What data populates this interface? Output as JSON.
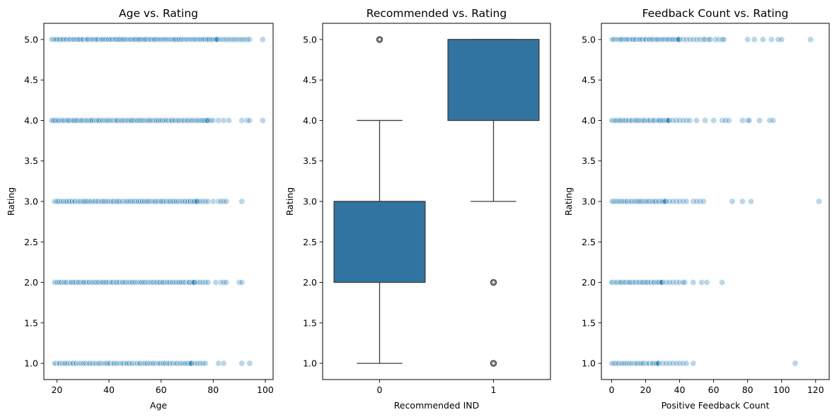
{
  "chart_data": [
    {
      "type": "scatter",
      "title": "Age vs. Rating",
      "xlabel": "Age",
      "ylabel": "Rating",
      "xlim": [
        15,
        103
      ],
      "ylim": [
        0.8,
        5.2
      ],
      "xticks": [
        20,
        40,
        60,
        80,
        100
      ],
      "yticks": [
        1.0,
        1.5,
        2.0,
        2.5,
        3.0,
        3.5,
        4.0,
        4.5,
        5.0
      ],
      "xtick_labels": [
        "20",
        "40",
        "60",
        "80",
        "100"
      ],
      "ytick_labels": [
        "1.0",
        "1.5",
        "2.0",
        "2.5",
        "3.0",
        "3.5",
        "4.0",
        "4.5",
        "5.0"
      ],
      "marker_color": "#1f77b4",
      "alpha": 0.3,
      "groups": [
        {
          "y": 5,
          "dense_range": [
            18,
            82
          ],
          "sparse_x": [
            83,
            84,
            85,
            86,
            87,
            88,
            89,
            90,
            91,
            92,
            93,
            94,
            99
          ]
        },
        {
          "y": 4,
          "dense_range": [
            18,
            78
          ],
          "sparse_x": [
            79,
            80,
            82,
            84,
            86,
            91,
            93,
            94,
            99
          ]
        },
        {
          "y": 3,
          "dense_range": [
            19,
            74
          ],
          "sparse_x": [
            75,
            76,
            77,
            78,
            80,
            82,
            83,
            84,
            85,
            91
          ]
        },
        {
          "y": 2,
          "dense_range": [
            19,
            73
          ],
          "sparse_x": [
            74,
            75,
            76,
            77,
            78,
            81,
            83,
            84,
            85,
            90,
            91
          ]
        },
        {
          "y": 1,
          "dense_range": [
            19,
            72
          ],
          "sparse_x": [
            73,
            74,
            75,
            76,
            77,
            82,
            84,
            91,
            94
          ]
        }
      ]
    },
    {
      "type": "box",
      "title": "Recommended vs. Rating",
      "xlabel": "Recommended IND",
      "ylabel": "Rating",
      "categories": [
        "0",
        "1"
      ],
      "ylim": [
        0.8,
        5.2
      ],
      "yticks": [
        1.0,
        1.5,
        2.0,
        2.5,
        3.0,
        3.5,
        4.0,
        4.5,
        5.0
      ],
      "ytick_labels": [
        "1.0",
        "1.5",
        "2.0",
        "2.5",
        "3.0",
        "3.5",
        "4.0",
        "4.5",
        "5.0"
      ],
      "box_color": "#3274a1",
      "boxes": [
        {
          "category": "0",
          "whisker_low": 1,
          "q1": 2,
          "median": 3,
          "q3": 3,
          "whisker_high": 4,
          "outliers": [
            5
          ]
        },
        {
          "category": "1",
          "whisker_low": 3,
          "q1": 4,
          "median": 5,
          "q3": 5,
          "whisker_high": 5,
          "outliers": [
            1,
            2
          ]
        }
      ]
    },
    {
      "type": "scatter",
      "title": "Feedback Count vs. Rating",
      "xlabel": "Positive Feedback Count",
      "ylabel": "Rating",
      "xlim": [
        -6,
        128
      ],
      "ylim": [
        0.8,
        5.2
      ],
      "xticks": [
        0,
        20,
        40,
        60,
        80,
        100,
        120
      ],
      "yticks": [
        1.0,
        1.5,
        2.0,
        2.5,
        3.0,
        3.5,
        4.0,
        4.5,
        5.0
      ],
      "xtick_labels": [
        "0",
        "20",
        "40",
        "60",
        "80",
        "100",
        "120"
      ],
      "ytick_labels": [
        "1.0",
        "1.5",
        "2.0",
        "2.5",
        "3.0",
        "3.5",
        "4.0",
        "4.5",
        "5.0"
      ],
      "marker_color": "#1f77b4",
      "alpha": 0.3,
      "groups": [
        {
          "y": 5,
          "dense_range": [
            0,
            40
          ],
          "sparse_x": [
            42,
            44,
            46,
            48,
            50,
            52,
            54,
            55,
            57,
            58,
            61,
            63,
            65,
            66,
            80,
            84,
            89,
            94,
            98,
            100,
            117
          ]
        },
        {
          "y": 4,
          "dense_range": [
            0,
            34
          ],
          "sparse_x": [
            36,
            38,
            40,
            42,
            44,
            46,
            50,
            55,
            60,
            65,
            67,
            69,
            77,
            80,
            81,
            87,
            93,
            95
          ]
        },
        {
          "y": 3,
          "dense_range": [
            0,
            32
          ],
          "sparse_x": [
            34,
            36,
            38,
            40,
            42,
            44,
            48,
            50,
            52,
            54,
            71,
            77,
            82,
            122
          ]
        },
        {
          "y": 2,
          "dense_range": [
            0,
            30
          ],
          "sparse_x": [
            32,
            34,
            36,
            38,
            40,
            42,
            43,
            48,
            53,
            56,
            65
          ]
        },
        {
          "y": 1,
          "dense_range": [
            0,
            28
          ],
          "sparse_x": [
            30,
            32,
            34,
            36,
            38,
            40,
            42,
            44,
            48,
            108
          ]
        }
      ]
    }
  ]
}
